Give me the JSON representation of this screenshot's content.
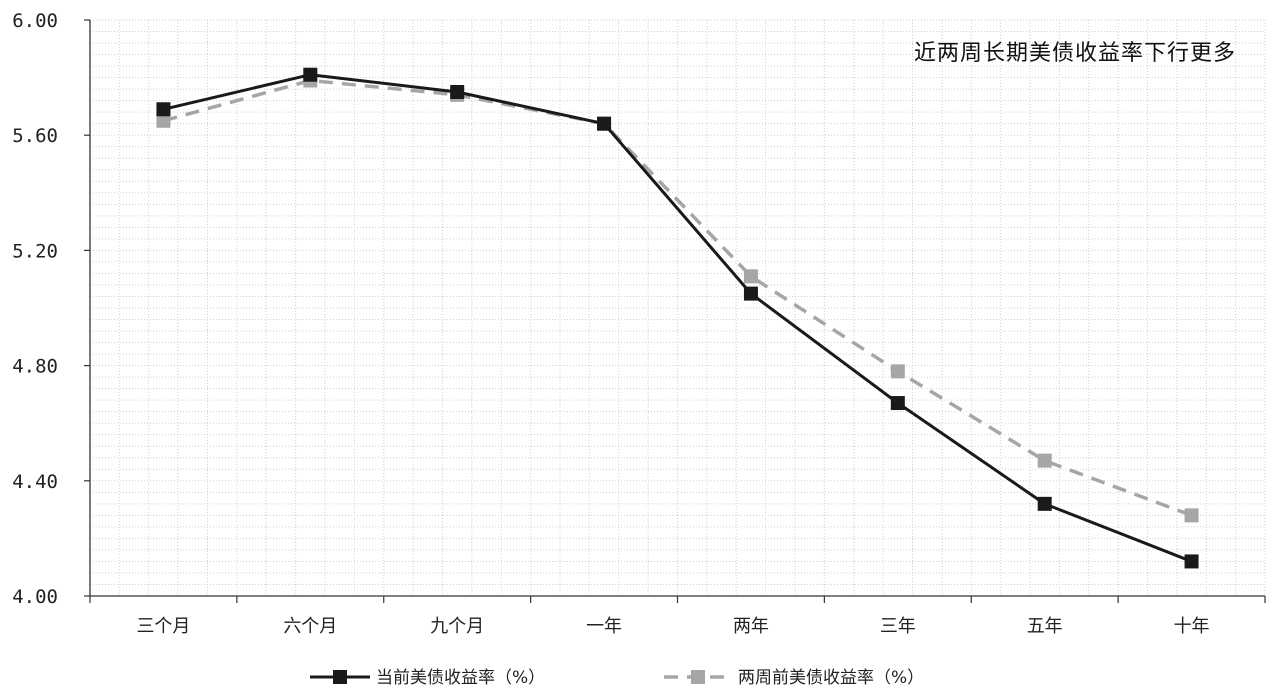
{
  "chart_data": {
    "type": "line",
    "title": "",
    "annotation": "近两周长期美债收益率下行更多",
    "xlabel": "",
    "ylabel": "",
    "categories": [
      "三个月",
      "六个月",
      "九个月",
      "一年",
      "两年",
      "三年",
      "五年",
      "十年"
    ],
    "ylim": [
      4.0,
      6.0
    ],
    "yticks": [
      "4.00",
      "4.40",
      "4.80",
      "5.20",
      "5.60",
      "6.00"
    ],
    "grid": "on (dotted major and minor)",
    "legend_position": "bottom",
    "series": [
      {
        "name": "当前美债收益率（%）",
        "values": [
          5.69,
          5.81,
          5.75,
          5.64,
          5.05,
          4.67,
          4.32,
          4.12
        ],
        "color": "#1a1a1a",
        "line_style": "solid",
        "marker": "square"
      },
      {
        "name": "两周前美债收益率（%）",
        "values": [
          5.65,
          5.79,
          5.74,
          5.64,
          5.11,
          4.78,
          4.47,
          4.28
        ],
        "color": "#a6a6a6",
        "line_style": "dashed",
        "marker": "square"
      }
    ]
  }
}
